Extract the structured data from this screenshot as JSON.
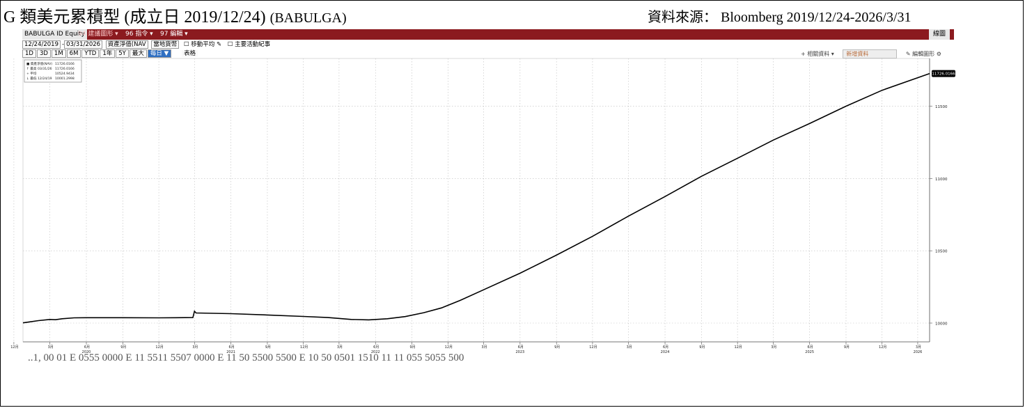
{
  "header": {
    "title": "G 類美元累積型 (成立日 2019/12/24)",
    "ticker": "(BABULGA)",
    "source": "資料來源： Bloomberg 2019/12/24-2026/3/31"
  },
  "toolbar": {
    "ticker_label": "BABULGA ID Equity",
    "suggest_label": "94 建議圖形 ▾",
    "cmd_label": "96 指令 ▾",
    "edit_label": "97 編輯 ▾",
    "line_label": "線圖",
    "start_date": "12/24/2019",
    "end_date": "03/31/2026",
    "field_label": "資產淨值(NAV",
    "currency_label": "當地貨幣",
    "moving_avg_label": "☐ 移動平均 ✎",
    "events_label": "☐ 主要活動紀事",
    "ranges": [
      "1D",
      "3D",
      "1M",
      "6M",
      "YTD",
      "1年",
      "5Y",
      "最大"
    ],
    "daily_label": "每日 ▼",
    "table_label": "表格",
    "related_label": "+ 相關資料 ▾",
    "new_data_label": "新增資料",
    "edit_chart_label": "✎ 編輯圖形 ⚙"
  },
  "chart_data": {
    "type": "line",
    "ylim": [
      9870,
      11830
    ],
    "yticks": [
      10000,
      10500,
      11000,
      11500
    ],
    "last_value_label": "11726.0166",
    "legend": [
      [
        "■ 資產淨值(NAV)",
        "11726.0166"
      ],
      [
        "↑ 最高 03/31/26",
        "11726.0166"
      ],
      [
        "+ 平均",
        "10524.9434"
      ],
      [
        "↓ 最低 12/24/19",
        "10001.2998"
      ]
    ],
    "x_month_ticks": [
      {
        "label": "12月",
        "date": "2019-12-01"
      },
      {
        "label": "3月",
        "date": "2020-03-01"
      },
      {
        "label": "6月",
        "date": "2020-06-01"
      },
      {
        "label": "9月",
        "date": "2020-09-01"
      },
      {
        "label": "12月",
        "date": "2020-12-01"
      },
      {
        "label": "3月",
        "date": "2021-03-01"
      },
      {
        "label": "6月",
        "date": "2021-06-01"
      },
      {
        "label": "9月",
        "date": "2021-09-01"
      },
      {
        "label": "12月",
        "date": "2021-12-01"
      },
      {
        "label": "3月",
        "date": "2022-03-01"
      },
      {
        "label": "6月",
        "date": "2022-06-01"
      },
      {
        "label": "9月",
        "date": "2022-09-01"
      },
      {
        "label": "12月",
        "date": "2022-12-01"
      },
      {
        "label": "3月",
        "date": "2023-03-01"
      },
      {
        "label": "6月",
        "date": "2023-06-01"
      },
      {
        "label": "9月",
        "date": "2023-09-01"
      },
      {
        "label": "12月",
        "date": "2023-12-01"
      },
      {
        "label": "3月",
        "date": "2024-03-01"
      },
      {
        "label": "6月",
        "date": "2024-06-01"
      },
      {
        "label": "9月",
        "date": "2024-09-01"
      },
      {
        "label": "12月",
        "date": "2024-12-01"
      },
      {
        "label": "3月",
        "date": "2025-03-01"
      },
      {
        "label": "6月",
        "date": "2025-06-01"
      },
      {
        "label": "9月",
        "date": "2025-09-01"
      },
      {
        "label": "12月",
        "date": "2025-12-01"
      },
      {
        "label": "3月",
        "date": "2026-03-01"
      }
    ],
    "x_year_labels": [
      {
        "label": "2020",
        "date": "2020-06-01"
      },
      {
        "label": "2021",
        "date": "2021-06-01"
      },
      {
        "label": "2022",
        "date": "2022-06-01"
      },
      {
        "label": "2023",
        "date": "2023-06-01"
      },
      {
        "label": "2024",
        "date": "2024-06-01"
      },
      {
        "label": "2025",
        "date": "2025-06-01"
      },
      {
        "label": "2026",
        "date": "2026-03-01"
      }
    ],
    "series": [
      {
        "points": [
          [
            "2019-12-24",
            10001.3
          ],
          [
            "2020-01-10",
            10008
          ],
          [
            "2020-02-01",
            10017
          ],
          [
            "2020-03-01",
            10025
          ],
          [
            "2020-03-15",
            10023
          ],
          [
            "2020-04-01",
            10030
          ],
          [
            "2020-05-01",
            10036
          ],
          [
            "2020-06-01",
            10037
          ],
          [
            "2020-09-01",
            10037
          ],
          [
            "2020-12-01",
            10036
          ],
          [
            "2021-02-25",
            10038
          ],
          [
            "2021-03-01",
            10082
          ],
          [
            "2021-03-05",
            10070
          ],
          [
            "2021-06-01",
            10065
          ],
          [
            "2021-09-01",
            10056
          ],
          [
            "2021-12-01",
            10046
          ],
          [
            "2022-02-01",
            10038
          ],
          [
            "2022-04-01",
            10025
          ],
          [
            "2022-05-15",
            10022
          ],
          [
            "2022-07-01",
            10030
          ],
          [
            "2022-08-15",
            10045
          ],
          [
            "2022-10-01",
            10072
          ],
          [
            "2022-11-15",
            10105
          ],
          [
            "2023-01-01",
            10157
          ],
          [
            "2023-03-01",
            10230
          ],
          [
            "2023-06-01",
            10345
          ],
          [
            "2023-09-01",
            10470
          ],
          [
            "2023-12-01",
            10600
          ],
          [
            "2024-03-01",
            10740
          ],
          [
            "2024-06-01",
            10875
          ],
          [
            "2024-09-01",
            11015
          ],
          [
            "2024-12-01",
            11140
          ],
          [
            "2025-03-01",
            11265
          ],
          [
            "2025-06-01",
            11380
          ],
          [
            "2025-09-01",
            11500
          ],
          [
            "2025-12-01",
            11610
          ],
          [
            "2026-03-31",
            11726.0166
          ]
        ]
      }
    ],
    "page_tail_text": "..1, 00 01 E 0555 0000 E 11 5511 5507 0000 E 11 50 5500 5500 E 10 50 0501 1510 11 11 055 5055 500",
    "colors": {
      "line": "#000000",
      "grid": "#bdbdbd",
      "axis": "#555555",
      "bar": "#8b1a1f"
    }
  }
}
